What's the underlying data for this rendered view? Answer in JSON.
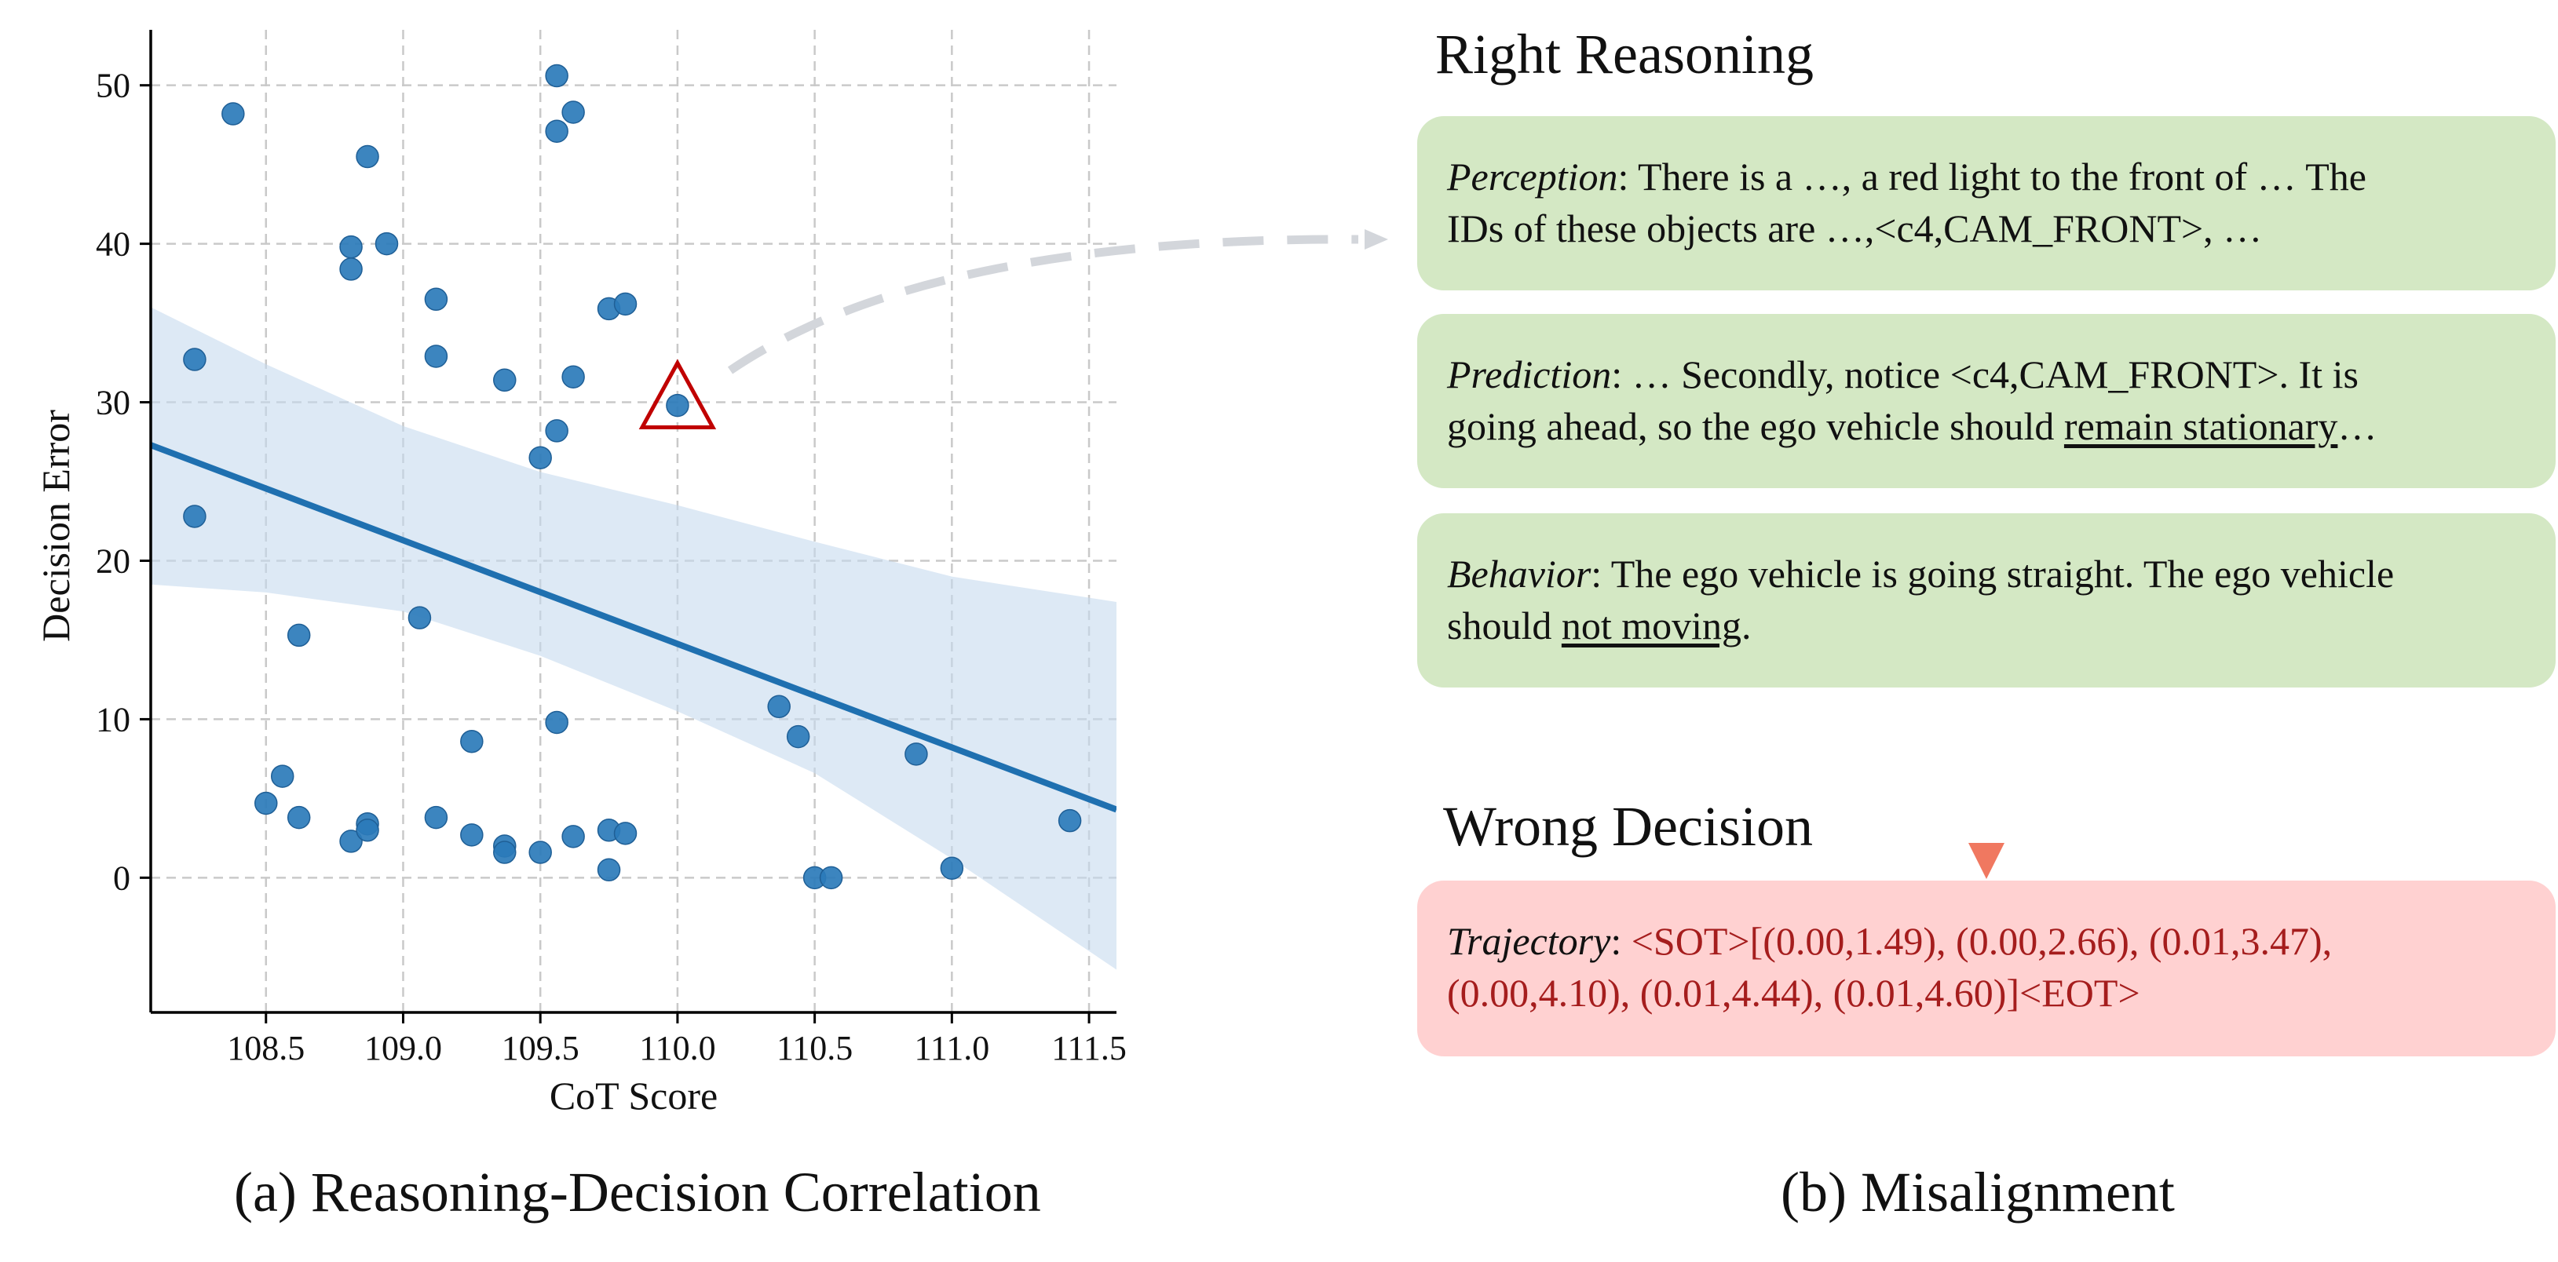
{
  "chart_data": {
    "type": "scatter",
    "xlabel": "CoT Score",
    "ylabel": "Decision Error",
    "xlim": [
      108.08,
      111.6
    ],
    "ylim": [
      -8.5,
      53.5
    ],
    "xticks": [
      108.5,
      109.0,
      109.5,
      110.0,
      110.5,
      111.0,
      111.5
    ],
    "yticks": [
      0,
      10,
      20,
      30,
      40,
      50
    ],
    "grid": true,
    "points": [
      {
        "x": 108.24,
        "y": 32.7
      },
      {
        "x": 108.24,
        "y": 22.8
      },
      {
        "x": 108.38,
        "y": 48.2
      },
      {
        "x": 108.5,
        "y": 4.7
      },
      {
        "x": 108.56,
        "y": 6.4
      },
      {
        "x": 108.62,
        "y": 15.3
      },
      {
        "x": 108.62,
        "y": 3.8
      },
      {
        "x": 108.81,
        "y": 39.8
      },
      {
        "x": 108.81,
        "y": 38.4
      },
      {
        "x": 108.81,
        "y": 2.3
      },
      {
        "x": 108.87,
        "y": 45.5
      },
      {
        "x": 108.87,
        "y": 3.4
      },
      {
        "x": 108.87,
        "y": 3.0
      },
      {
        "x": 108.94,
        "y": 40.0
      },
      {
        "x": 109.06,
        "y": 16.4
      },
      {
        "x": 109.12,
        "y": 36.5
      },
      {
        "x": 109.12,
        "y": 32.9
      },
      {
        "x": 109.12,
        "y": 3.8
      },
      {
        "x": 109.25,
        "y": 8.6
      },
      {
        "x": 109.25,
        "y": 2.7
      },
      {
        "x": 109.37,
        "y": 31.4
      },
      {
        "x": 109.37,
        "y": 2.0
      },
      {
        "x": 109.37,
        "y": 1.6
      },
      {
        "x": 109.5,
        "y": 26.5
      },
      {
        "x": 109.5,
        "y": 1.6
      },
      {
        "x": 109.56,
        "y": 50.6
      },
      {
        "x": 109.56,
        "y": 47.1
      },
      {
        "x": 109.56,
        "y": 28.2
      },
      {
        "x": 109.56,
        "y": 9.8
      },
      {
        "x": 109.62,
        "y": 48.3
      },
      {
        "x": 109.62,
        "y": 31.6
      },
      {
        "x": 109.62,
        "y": 2.6
      },
      {
        "x": 109.75,
        "y": 35.9
      },
      {
        "x": 109.75,
        "y": 3.0
      },
      {
        "x": 109.75,
        "y": 0.5
      },
      {
        "x": 109.81,
        "y": 36.2
      },
      {
        "x": 109.81,
        "y": 2.8
      },
      {
        "x": 110.0,
        "y": 29.8
      },
      {
        "x": 110.37,
        "y": 10.8
      },
      {
        "x": 110.44,
        "y": 8.9
      },
      {
        "x": 110.5,
        "y": 0.0
      },
      {
        "x": 110.56,
        "y": 0.0
      },
      {
        "x": 110.87,
        "y": 7.8
      },
      {
        "x": 111.0,
        "y": 0.6
      },
      {
        "x": 111.43,
        "y": 3.6
      }
    ],
    "regression": {
      "x": [
        108.08,
        111.6
      ],
      "y": [
        27.3,
        4.3
      ]
    },
    "confidence_band": {
      "x": [
        108.08,
        108.5,
        109.0,
        109.5,
        110.0,
        110.5,
        111.0,
        111.6
      ],
      "upper": [
        36.0,
        32.4,
        28.5,
        25.6,
        23.5,
        21.2,
        19.0,
        17.4
      ],
      "lower": [
        18.5,
        18.0,
        16.8,
        14.0,
        10.5,
        6.6,
        1.2,
        -5.8
      ]
    },
    "highlight": {
      "x": 110.0,
      "y": 30.2,
      "marker": "triangle"
    },
    "colors": {
      "points": "#2b7bba",
      "line": "#1f70b0",
      "band": "#c6dbef",
      "highlight": "#c00000",
      "grid": "#c9c9c9"
    }
  },
  "captions": {
    "left": "(a) Reasoning-Decision Correlation",
    "right": "(b) Misalignment"
  },
  "right_panel": {
    "right_title": "Right Reasoning",
    "wrong_title": "Wrong Decision",
    "perception": {
      "label": "Perception",
      "line1": ": There is a …, a red light to the front of … The",
      "line2": "IDs of these objects are …,<c4,CAM_FRONT>, …"
    },
    "prediction": {
      "label": "Prediction",
      "line1": ": … Secondly, notice <c4,CAM_FRONT>. It is",
      "line2_pre": "going ahead, so the ego vehicle should ",
      "line2_u": "remain stationary",
      "line2_post": "…"
    },
    "behavior": {
      "label": "Behavior",
      "line1": ": The ego vehicle is going straight. The ego vehicle",
      "line2_pre": "should ",
      "line2_u": "not moving",
      "line2_post": "."
    },
    "trajectory": {
      "label": "Trajectory",
      "colon": ": ",
      "line1": "<SOT>[(0.00,1.49), (0.00,2.66), (0.01,3.47),",
      "line2": "(0.00,4.10), (0.01,4.44), (0.01,4.60)]<EOT>"
    },
    "colors": {
      "green_card": "#d4e8c4",
      "red_card": "#ffd1d1",
      "trajectory_text": "#a51d1d",
      "arrow_top": "#8aa05a",
      "arrow_bottom": "#f07860",
      "curve_arrow": "#d3d6db"
    }
  }
}
